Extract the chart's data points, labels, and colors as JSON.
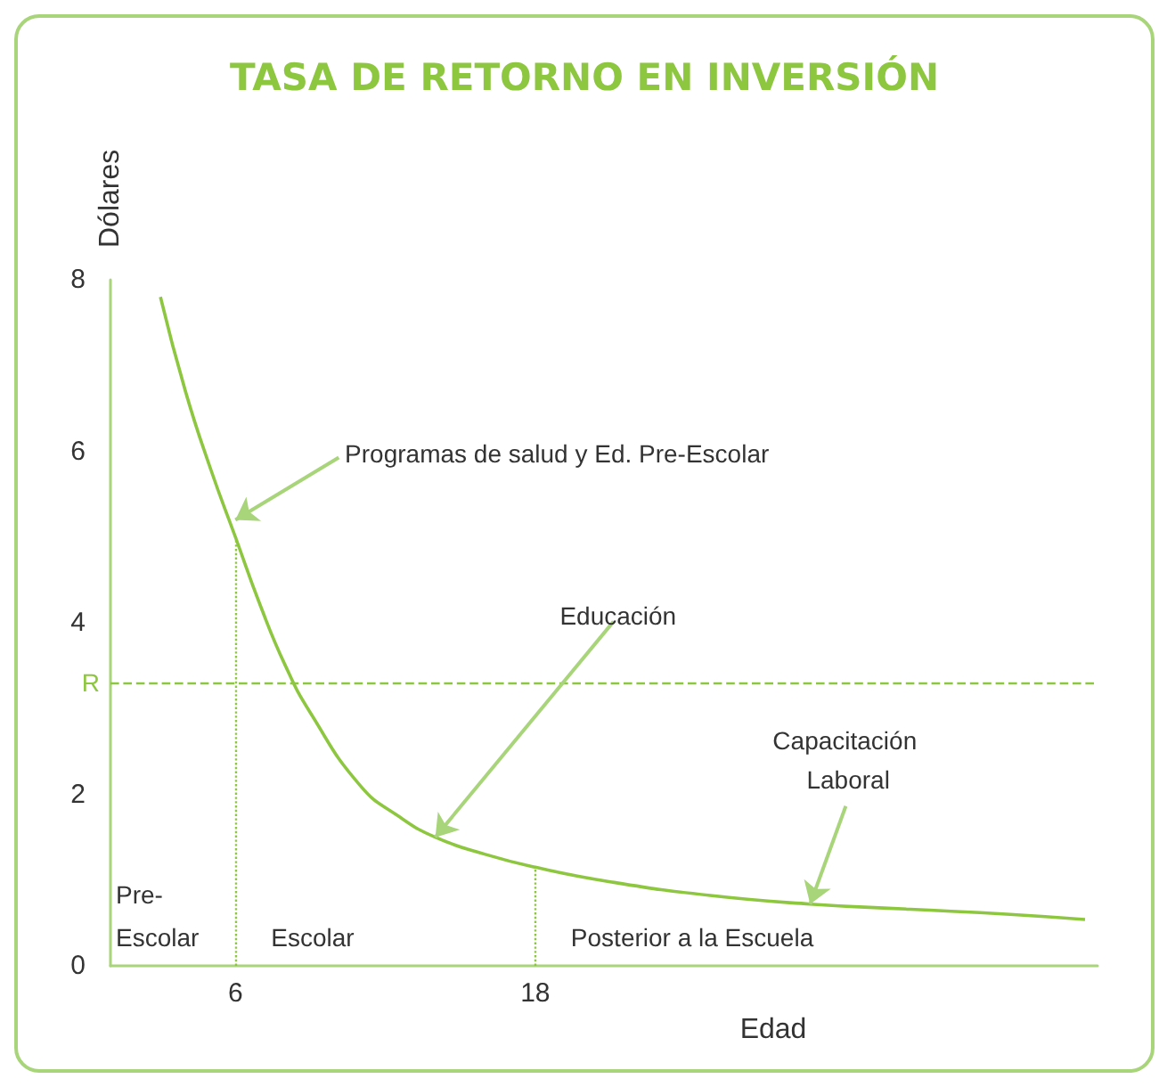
{
  "chart_data": {
    "type": "line",
    "title": "TASA DE RETORNO EN INVERSIÓN",
    "xlabel": "Edad",
    "ylabel": "Dólares",
    "x": [
      3,
      4,
      5,
      6,
      7,
      8,
      9,
      11,
      12.5,
      14,
      16,
      18,
      21,
      25,
      29,
      33,
      37,
      40
    ],
    "series": [
      {
        "color": "#8dc63f",
        "values": [
          7.8,
          6.7,
          5.8,
          5.0,
          4.2,
          3.5,
          2.95,
          2.1,
          1.75,
          1.5,
          1.3,
          1.15,
          0.98,
          0.82,
          0.72,
          0.66,
          0.6,
          0.54
        ]
      }
    ],
    "xlim": [
      1,
      40.5
    ],
    "ylim": [
      0,
      8
    ],
    "xticks": [
      6,
      18
    ],
    "yticks": [
      0,
      2,
      4,
      6,
      8
    ],
    "ref_lines": [
      {
        "axis": "y",
        "value": 3.3,
        "label": "R",
        "color": "#8dc63f",
        "line_style": "dashed"
      },
      {
        "axis": "x",
        "value": 6,
        "color": "#8dc63f",
        "line_style": "dotted"
      },
      {
        "axis": "x",
        "value": 18,
        "color": "#8dc63f",
        "line_style": "dotted"
      }
    ],
    "annotations": [
      {
        "text": "Programas de salud y Ed. Pre-Escolar",
        "x": 6,
        "y": 5.2
      },
      {
        "text": "Educación",
        "x": 14,
        "y": 1.5
      },
      {
        "text": "Capacitación Laboral",
        "x": 29,
        "y": 0.72
      },
      "Pre-Escolar",
      "Escolar",
      "Posterior a la Escuela"
    ],
    "grid": false,
    "marker": "none",
    "line_style": "solid"
  }
}
